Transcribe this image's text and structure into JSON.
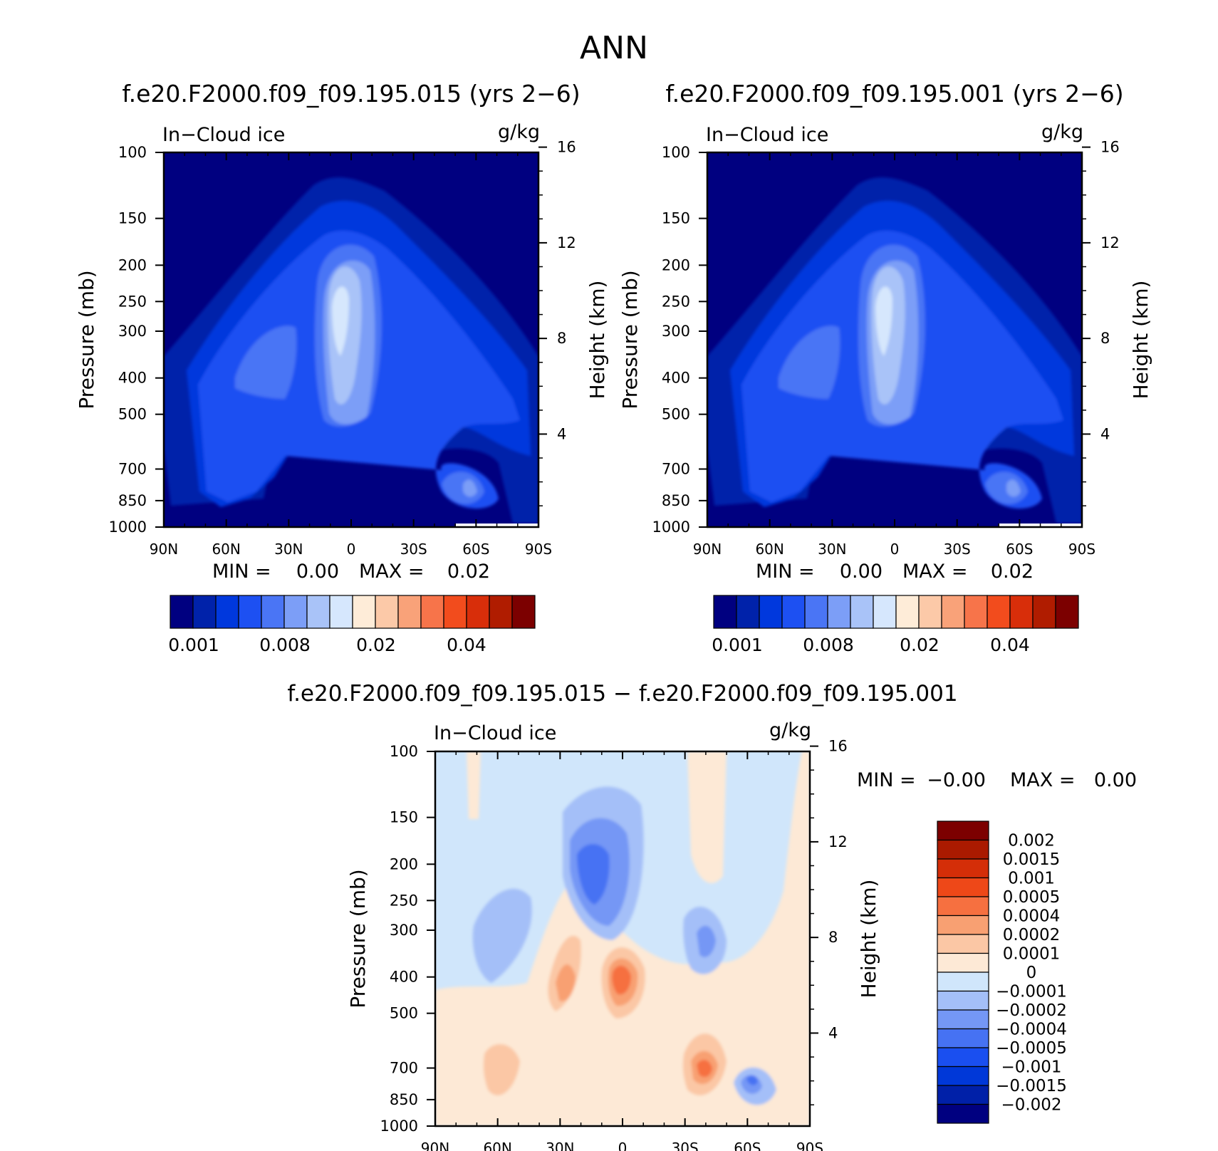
{
  "main_title": "ANN",
  "colors": {
    "seq_palette": [
      "#000080",
      "#0022aa",
      "#0038dd",
      "#1d50f2",
      "#4a75f5",
      "#7c9ef7",
      "#a9c3f8",
      "#d6e7fd",
      "#feecd8",
      "#fcc9a8",
      "#f9a279",
      "#f7744a",
      "#f24c1d",
      "#d82e0a",
      "#b01c00",
      "#7c0000"
    ],
    "div_palette": [
      "#000080",
      "#0020a8",
      "#0038d8",
      "#1a4ff0",
      "#4672f3",
      "#7497f5",
      "#a4bff8",
      "#d0e6fb",
      "#fde9d6",
      "#fbc7a5",
      "#f8a072",
      "#f67040",
      "#ee4818",
      "#d42e08",
      "#aa1a00",
      "#7c0000"
    ]
  },
  "panels": [
    {
      "title": "f.e20.F2000.f09_f09.195.015 (yrs 2−6)",
      "variable": "In−Cloud ice",
      "units": "g/kg",
      "min_label": "MIN =",
      "min_value": "0.00",
      "max_label": "MAX =",
      "max_value": "0.02",
      "colorbar_labels": [
        "0.001",
        "0.008",
        "0.02",
        "0.04"
      ]
    },
    {
      "title": "f.e20.F2000.f09_f09.195.001 (yrs 2−6)",
      "variable": "In−Cloud ice",
      "units": "g/kg",
      "min_label": "MIN =",
      "min_value": "0.00",
      "max_label": "MAX =",
      "max_value": "0.02",
      "colorbar_labels": [
        "0.001",
        "0.008",
        "0.02",
        "0.04"
      ]
    },
    {
      "title": "f.e20.F2000.f09_f09.195.015 − f.e20.F2000.f09_f09.195.001",
      "variable": "In−Cloud ice",
      "units": "g/kg",
      "min_label": "MIN =",
      "min_value": "−0.00",
      "max_label": "MAX =",
      "max_value": "0.00",
      "colorbar_labels": [
        "0.002",
        "0.0015",
        "0.001",
        "0.0005",
        "0.0004",
        "0.0002",
        "0.0001",
        "0",
        "−0.0001",
        "−0.0002",
        "−0.0004",
        "−0.0005",
        "−0.001",
        "−0.0015",
        "−0.002"
      ]
    }
  ],
  "chart_data": {
    "type": "heatmap",
    "xlabel": "",
    "ylabel": "Pressure (mb)",
    "y2label": "Height (km)",
    "x_ticks": [
      "90N",
      "60N",
      "30N",
      "0",
      "30S",
      "60S",
      "90S"
    ],
    "x_values": [
      -90,
      -60,
      -30,
      0,
      30,
      60,
      90
    ],
    "xlim": [
      -90,
      90
    ],
    "y_ticks": [
      "100",
      "150",
      "200",
      "250",
      "300",
      "400",
      "500",
      "700",
      "850",
      "1000"
    ],
    "y_values": [
      100,
      150,
      200,
      250,
      300,
      400,
      500,
      700,
      850,
      1000
    ],
    "ylim": [
      1000,
      100
    ],
    "y2_ticks": [
      "16",
      "12",
      "8",
      "4"
    ],
    "y2_values": [
      16,
      12,
      8,
      4
    ]
  }
}
